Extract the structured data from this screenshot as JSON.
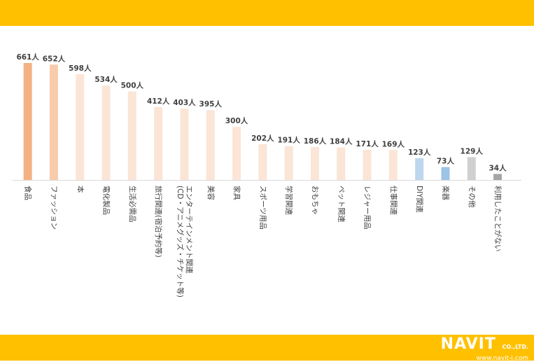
{
  "chart_data": {
    "type": "bar",
    "title": "",
    "xlabel": "",
    "ylabel": "",
    "ylim": [
      0,
      700
    ],
    "grid": false,
    "legend": "none",
    "value_suffix": "人",
    "categories": [
      "食品",
      "ファッション",
      "本",
      "電化製品",
      "生活必需品",
      "旅行関連(宿泊予約等)",
      "エンターテインメント関連(CD・アニメグッズ・チケット等)",
      "美容",
      "家具",
      "スポーツ用品",
      "学習関連",
      "おもちゃ",
      "ペット関連",
      "レジャー用品",
      "仕事関連",
      "DIY関連",
      "楽器",
      "その他",
      "利用したことがない"
    ],
    "values": [
      661,
      652,
      598,
      534,
      500,
      412,
      403,
      395,
      300,
      202,
      191,
      186,
      184,
      171,
      169,
      123,
      73,
      129,
      34
    ],
    "colors": [
      "#F4B183",
      "#F8CBAD",
      "#FBE5D6",
      "#FBE5D6",
      "#FBE5D6",
      "#FBE5D6",
      "#FBE5D6",
      "#FBE5D6",
      "#FBE5D6",
      "#FBE5D6",
      "#FBE5D6",
      "#FBE5D6",
      "#FBE5D6",
      "#FBE5D6",
      "#FBE5D6",
      "#BDD7EE",
      "#9DC3E6",
      "#D0D0D0",
      "#A6A6A6"
    ],
    "label_lines": [
      [
        "食品"
      ],
      [
        "ファッション"
      ],
      [
        "本"
      ],
      [
        "電化製品"
      ],
      [
        "生活必需品"
      ],
      [
        "旅行関連(宿泊予約等)"
      ],
      [
        "エンターテインメント関連",
        "(CD・アニメグッズ・チケット等)"
      ],
      [
        "美容"
      ],
      [
        "家具"
      ],
      [
        "スポーツ用品"
      ],
      [
        "学習関連"
      ],
      [
        "おもちゃ"
      ],
      [
        "ペット関連"
      ],
      [
        "レジャー用品"
      ],
      [
        "仕事関連"
      ],
      [
        "DIY関連"
      ],
      [
        "楽器"
      ],
      [
        "その他"
      ],
      [
        "利用したことがない"
      ]
    ]
  },
  "header": {
    "color": "#FFC000"
  },
  "footer": {
    "color": "#FFC000",
    "logo_main": "NAVIT",
    "logo_suffix": "CO.,LTD.",
    "logo_url": "www.navit-j.com"
  }
}
